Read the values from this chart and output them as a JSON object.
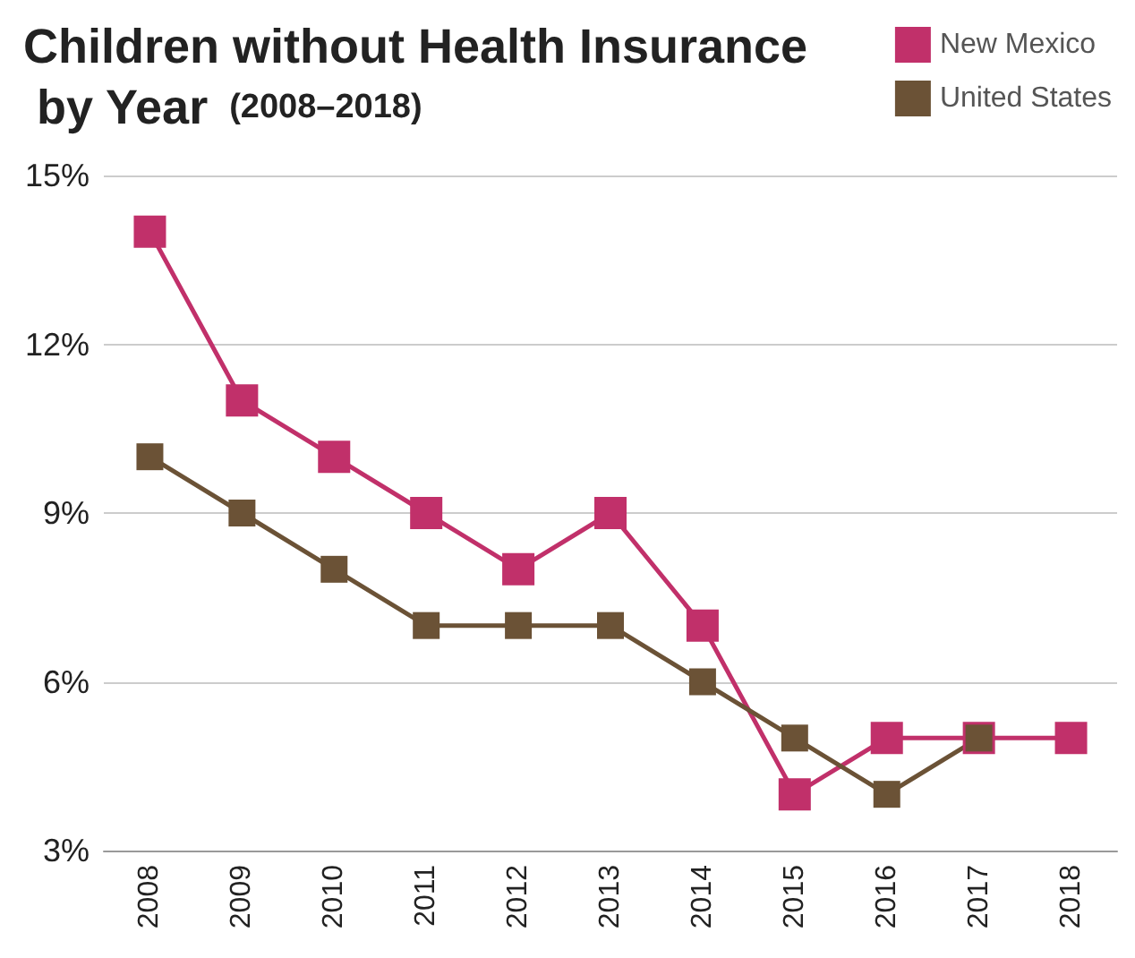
{
  "chart_data": {
    "type": "line",
    "title": "Children without Health Insurance by Year",
    "subtitle": "(2008–2018)",
    "categories": [
      "2008",
      "2009",
      "2010",
      "2011",
      "2012",
      "2013",
      "2014",
      "2015",
      "2016",
      "2017",
      "2018"
    ],
    "series": [
      {
        "name": "New Mexico",
        "color": "#c1306a",
        "values": [
          14,
          11,
          10,
          9,
          8,
          9,
          7,
          4,
          5,
          5,
          5
        ]
      },
      {
        "name": "United States",
        "color": "#6b5236",
        "values": [
          10,
          9,
          8,
          7,
          7,
          7,
          6,
          5,
          4,
          5,
          null
        ]
      }
    ],
    "ylim": [
      3,
      15
    ],
    "yticks": [
      {
        "value": 3,
        "label": "3%"
      },
      {
        "value": 6,
        "label": "6%"
      },
      {
        "value": 9,
        "label": "9%"
      },
      {
        "value": 12,
        "label": "12%"
      },
      {
        "value": 15,
        "label": "15%"
      }
    ],
    "grid": "y",
    "legend": "top right",
    "marker": "square",
    "line_style": "solid"
  }
}
